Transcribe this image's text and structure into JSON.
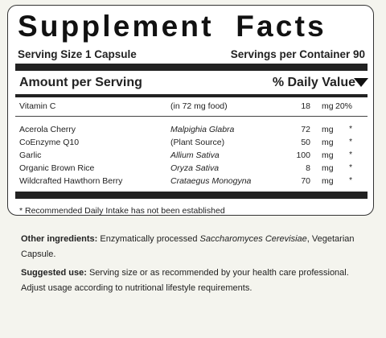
{
  "panel": {
    "title": "Supplement Facts",
    "serving_size": "Serving Size 1 Capsule",
    "servings_per_container": "Servings per Container 90",
    "amount_header": "Amount per Serving",
    "dv_header": "% Daily Value",
    "main_row": {
      "name": "Vitamin C",
      "source": "(in 72 mg food)",
      "amount": "18",
      "unit": "mg",
      "dv": "20%"
    },
    "rows": [
      {
        "name": "Acerola Cherry",
        "source": "Malpighia Glabra",
        "amount": "72",
        "unit": "mg",
        "dv": "*"
      },
      {
        "name": "CoEnzyme Q10",
        "source": "(Plant Source)",
        "amount": "50",
        "unit": "mg",
        "dv": "*"
      },
      {
        "name": "Garlic",
        "source": "Allium Sativa",
        "amount": "100",
        "unit": "mg",
        "dv": "*"
      },
      {
        "name": "Organic Brown Rice",
        "source": "Oryza Sativa",
        "amount": "8",
        "unit": "mg",
        "dv": "*"
      },
      {
        "name": "Wildcrafted Hawthorn Berry",
        "source": "Crataegus Monogyna",
        "amount": "70",
        "unit": "mg",
        "dv": "*"
      }
    ],
    "footnote": "* Recommended Daily Intake has not been established"
  },
  "other_ingredients": {
    "label": "Other ingredients:",
    "text_before": " Enzymatically processed ",
    "italic": "Saccharomyces Cerevisiae",
    "text_after": ", Vegetarian Capsule."
  },
  "suggested_use": {
    "label": "Suggested use:",
    "text": " Serving size or as recommended by your health care professional. Adjust usage according to nutritional lifestyle requirements."
  }
}
